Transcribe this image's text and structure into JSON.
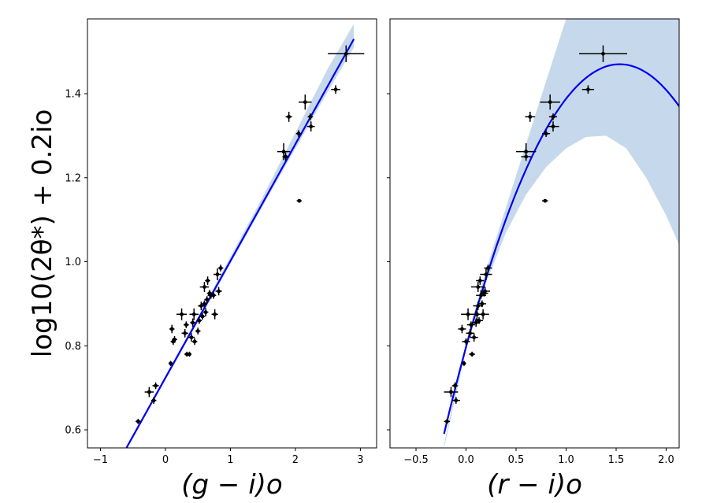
{
  "chart_data": [
    {
      "type": "scatter",
      "panel": "left",
      "xlabel": "(g − i)o",
      "ylabel": "log10(2θ*) + 0.2io",
      "xlim": [
        -1.2,
        3.25
      ],
      "ylim": [
        0.557,
        1.578
      ],
      "xticks": [
        -1,
        0,
        1,
        2,
        3
      ],
      "xtick_labels": [
        "−1",
        "0",
        "1",
        "2",
        "3"
      ],
      "yticks": [
        0.6,
        0.8,
        1.0,
        1.2,
        1.4
      ],
      "ytick_labels": [
        "0.6",
        "0.8",
        "1.0",
        "1.2",
        "1.4"
      ],
      "grid": false,
      "fit": {
        "type": "linear",
        "x_start": -0.6,
        "x_end": 2.9,
        "y_start": 0.557,
        "y_end": 1.53,
        "color": "#0000ee"
      },
      "band": {
        "x": [
          -0.6,
          0.5,
          1.5,
          2.5,
          2.9
        ],
        "lower": [
          0.553,
          0.857,
          1.133,
          1.405,
          1.51
        ],
        "upper": [
          0.562,
          0.868,
          1.155,
          1.46,
          1.566
        ],
        "color": "#c6d9ec"
      },
      "points": [
        {
          "x": -0.42,
          "y": 0.62,
          "xerr": 0.04,
          "yerr": 0.006
        },
        {
          "x": -0.25,
          "y": 0.69,
          "xerr": 0.07,
          "yerr": 0.012
        },
        {
          "x": -0.18,
          "y": 0.67,
          "xerr": 0.04,
          "yerr": 0.008
        },
        {
          "x": -0.15,
          "y": 0.705,
          "xerr": 0.05,
          "yerr": 0.008
        },
        {
          "x": 0.08,
          "y": 0.758,
          "xerr": 0.03,
          "yerr": 0.006
        },
        {
          "x": 0.1,
          "y": 0.84,
          "xerr": 0.04,
          "yerr": 0.01
        },
        {
          "x": 0.12,
          "y": 0.81,
          "xerr": 0.04,
          "yerr": 0.008
        },
        {
          "x": 0.14,
          "y": 0.815,
          "xerr": 0.04,
          "yerr": 0.008
        },
        {
          "x": 0.25,
          "y": 0.875,
          "xerr": 0.08,
          "yerr": 0.014
        },
        {
          "x": 0.3,
          "y": 0.83,
          "xerr": 0.05,
          "yerr": 0.01
        },
        {
          "x": 0.32,
          "y": 0.85,
          "xerr": 0.04,
          "yerr": 0.008
        },
        {
          "x": 0.33,
          "y": 0.78,
          "xerr": 0.04,
          "yerr": 0.006
        },
        {
          "x": 0.37,
          "y": 0.78,
          "xerr": 0.03,
          "yerr": 0.006
        },
        {
          "x": 0.4,
          "y": 0.82,
          "xerr": 0.05,
          "yerr": 0.01
        },
        {
          "x": 0.42,
          "y": 0.855,
          "xerr": 0.04,
          "yerr": 0.01
        },
        {
          "x": 0.44,
          "y": 0.875,
          "xerr": 0.07,
          "yerr": 0.014
        },
        {
          "x": 0.45,
          "y": 0.81,
          "xerr": 0.04,
          "yerr": 0.008
        },
        {
          "x": 0.5,
          "y": 0.835,
          "xerr": 0.04,
          "yerr": 0.008
        },
        {
          "x": 0.52,
          "y": 0.86,
          "xerr": 0.04,
          "yerr": 0.008
        },
        {
          "x": 0.55,
          "y": 0.895,
          "xerr": 0.05,
          "yerr": 0.01
        },
        {
          "x": 0.57,
          "y": 0.87,
          "xerr": 0.04,
          "yerr": 0.008
        },
        {
          "x": 0.6,
          "y": 0.94,
          "xerr": 0.07,
          "yerr": 0.012
        },
        {
          "x": 0.6,
          "y": 0.9,
          "xerr": 0.04,
          "yerr": 0.008
        },
        {
          "x": 0.62,
          "y": 0.88,
          "xerr": 0.04,
          "yerr": 0.01
        },
        {
          "x": 0.64,
          "y": 0.91,
          "xerr": 0.04,
          "yerr": 0.008
        },
        {
          "x": 0.65,
          "y": 0.955,
          "xerr": 0.04,
          "yerr": 0.01
        },
        {
          "x": 0.68,
          "y": 0.925,
          "xerr": 0.04,
          "yerr": 0.008
        },
        {
          "x": 0.7,
          "y": 0.92,
          "xerr": 0.05,
          "yerr": 0.008
        },
        {
          "x": 0.74,
          "y": 0.92,
          "xerr": 0.04,
          "yerr": 0.008
        },
        {
          "x": 0.76,
          "y": 0.875,
          "xerr": 0.05,
          "yerr": 0.012
        },
        {
          "x": 0.8,
          "y": 0.97,
          "xerr": 0.06,
          "yerr": 0.014
        },
        {
          "x": 0.82,
          "y": 0.93,
          "xerr": 0.05,
          "yerr": 0.01
        },
        {
          "x": 0.85,
          "y": 0.985,
          "xerr": 0.04,
          "yerr": 0.008
        },
        {
          "x": 1.82,
          "y": 1.262,
          "xerr": 0.1,
          "yerr": 0.02
        },
        {
          "x": 1.85,
          "y": 1.25,
          "xerr": 0.05,
          "yerr": 0.01
        },
        {
          "x": 1.9,
          "y": 1.345,
          "xerr": 0.05,
          "yerr": 0.012
        },
        {
          "x": 2.05,
          "y": 1.305,
          "xerr": 0.04,
          "yerr": 0.008
        },
        {
          "x": 2.06,
          "y": 1.145,
          "xerr": 0.04,
          "yerr": 0.004
        },
        {
          "x": 2.15,
          "y": 1.38,
          "xerr": 0.1,
          "yerr": 0.018
        },
        {
          "x": 2.23,
          "y": 1.345,
          "xerr": 0.04,
          "yerr": 0.008
        },
        {
          "x": 2.24,
          "y": 1.322,
          "xerr": 0.06,
          "yerr": 0.012
        },
        {
          "x": 2.62,
          "y": 1.41,
          "xerr": 0.07,
          "yerr": 0.01
        },
        {
          "x": 2.78,
          "y": 1.495,
          "xerr": 0.28,
          "yerr": 0.02
        }
      ]
    },
    {
      "type": "scatter",
      "panel": "right",
      "xlabel": "(r − i)o",
      "ylabel": "",
      "xlim": [
        -0.76,
        2.13
      ],
      "ylim": [
        0.557,
        1.578
      ],
      "xticks": [
        -0.5,
        0.0,
        0.5,
        1.0,
        1.5,
        2.0
      ],
      "xtick_labels": [
        "−0.5",
        "0.0",
        "0.5",
        "1.0",
        "1.5",
        "2.0"
      ],
      "yticks": [
        0.6,
        0.8,
        1.0,
        1.2,
        1.4
      ],
      "ytick_labels": [
        "",
        "",
        "",
        "",
        ""
      ],
      "grid": false,
      "fit": {
        "type": "quadratic",
        "coeffs": [
          0.797,
          0.876,
          -0.285
        ],
        "x_start": -0.22,
        "x_end": 2.13,
        "color": "#0000ee"
      },
      "band": {
        "x": [
          -0.22,
          0.0,
          0.2,
          0.4,
          0.6,
          0.8,
          1.0,
          1.2,
          1.4,
          1.6,
          1.8,
          2.0,
          2.13
        ],
        "lower": [
          0.557,
          0.79,
          0.95,
          1.07,
          1.16,
          1.225,
          1.27,
          1.297,
          1.3,
          1.27,
          1.2,
          1.11,
          1.04
        ],
        "upper": [
          0.565,
          0.81,
          0.98,
          1.13,
          1.28,
          1.43,
          1.578,
          1.578,
          1.578,
          1.578,
          1.578,
          1.578,
          1.578
        ],
        "color": "#c6d9ec"
      },
      "points": [
        {
          "x": -0.19,
          "y": 0.62,
          "xerr": 0.03,
          "yerr": 0.006
        },
        {
          "x": -0.15,
          "y": 0.69,
          "xerr": 0.07,
          "yerr": 0.012
        },
        {
          "x": -0.1,
          "y": 0.67,
          "xerr": 0.04,
          "yerr": 0.008
        },
        {
          "x": -0.11,
          "y": 0.705,
          "xerr": 0.03,
          "yerr": 0.008
        },
        {
          "x": -0.02,
          "y": 0.758,
          "xerr": 0.02,
          "yerr": 0.006
        },
        {
          "x": -0.04,
          "y": 0.84,
          "xerr": 0.04,
          "yerr": 0.01
        },
        {
          "x": 0.0,
          "y": 0.81,
          "xerr": 0.04,
          "yerr": 0.008
        },
        {
          "x": 0.02,
          "y": 0.875,
          "xerr": 0.07,
          "yerr": 0.014
        },
        {
          "x": 0.04,
          "y": 0.83,
          "xerr": 0.04,
          "yerr": 0.01
        },
        {
          "x": 0.05,
          "y": 0.85,
          "xerr": 0.04,
          "yerr": 0.008
        },
        {
          "x": 0.06,
          "y": 0.78,
          "xerr": 0.03,
          "yerr": 0.006
        },
        {
          "x": 0.08,
          "y": 0.82,
          "xerr": 0.04,
          "yerr": 0.01
        },
        {
          "x": 0.1,
          "y": 0.855,
          "xerr": 0.04,
          "yerr": 0.01
        },
        {
          "x": 0.11,
          "y": 0.875,
          "xerr": 0.07,
          "yerr": 0.014
        },
        {
          "x": 0.12,
          "y": 0.94,
          "xerr": 0.07,
          "yerr": 0.012
        },
        {
          "x": 0.12,
          "y": 0.895,
          "xerr": 0.05,
          "yerr": 0.01
        },
        {
          "x": 0.13,
          "y": 0.86,
          "xerr": 0.04,
          "yerr": 0.008
        },
        {
          "x": 0.14,
          "y": 0.955,
          "xerr": 0.04,
          "yerr": 0.01
        },
        {
          "x": 0.15,
          "y": 0.92,
          "xerr": 0.05,
          "yerr": 0.008
        },
        {
          "x": 0.16,
          "y": 0.9,
          "xerr": 0.04,
          "yerr": 0.008
        },
        {
          "x": 0.17,
          "y": 0.875,
          "xerr": 0.06,
          "yerr": 0.012
        },
        {
          "x": 0.18,
          "y": 0.925,
          "xerr": 0.04,
          "yerr": 0.008
        },
        {
          "x": 0.19,
          "y": 0.93,
          "xerr": 0.05,
          "yerr": 0.01
        },
        {
          "x": 0.2,
          "y": 0.97,
          "xerr": 0.06,
          "yerr": 0.014
        },
        {
          "x": 0.22,
          "y": 0.985,
          "xerr": 0.04,
          "yerr": 0.008
        },
        {
          "x": 0.6,
          "y": 1.262,
          "xerr": 0.1,
          "yerr": 0.02
        },
        {
          "x": 0.6,
          "y": 1.25,
          "xerr": 0.05,
          "yerr": 0.01
        },
        {
          "x": 0.64,
          "y": 1.345,
          "xerr": 0.05,
          "yerr": 0.012
        },
        {
          "x": 0.79,
          "y": 1.145,
          "xerr": 0.03,
          "yerr": 0.004
        },
        {
          "x": 0.8,
          "y": 1.305,
          "xerr": 0.04,
          "yerr": 0.008
        },
        {
          "x": 0.84,
          "y": 1.38,
          "xerr": 0.1,
          "yerr": 0.018
        },
        {
          "x": 0.87,
          "y": 1.345,
          "xerr": 0.04,
          "yerr": 0.008
        },
        {
          "x": 0.87,
          "y": 1.322,
          "xerr": 0.06,
          "yerr": 0.012
        },
        {
          "x": 1.22,
          "y": 1.41,
          "xerr": 0.06,
          "yerr": 0.01
        },
        {
          "x": 1.37,
          "y": 1.495,
          "xerr": 0.24,
          "yerr": 0.02
        }
      ]
    }
  ]
}
